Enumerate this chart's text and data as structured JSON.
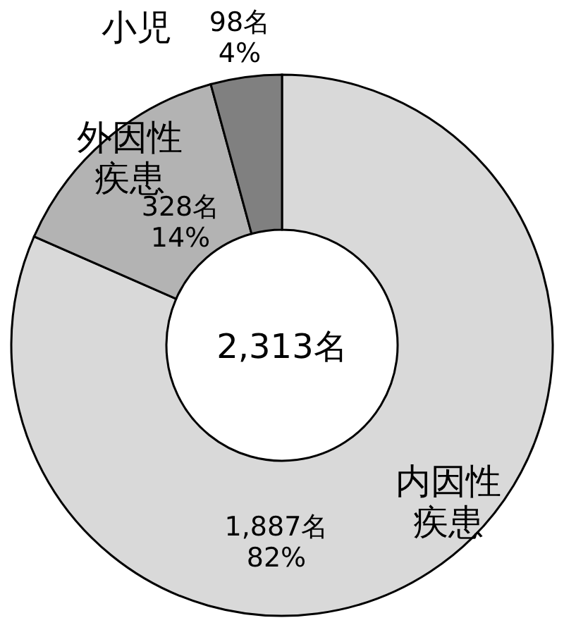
{
  "chart_data": {
    "type": "donut",
    "categories": [
      "内因性疾患",
      "外因性疾患",
      "小児"
    ],
    "values": [
      1887,
      328,
      98
    ],
    "colors": [
      "#d9d9d9",
      "#b3b3b3",
      "#808080"
    ],
    "value_labels": [
      "1,887名\n82%",
      "328名\n14%",
      "98名\n4%"
    ],
    "annotations": [
      "2,313名"
    ]
  }
}
